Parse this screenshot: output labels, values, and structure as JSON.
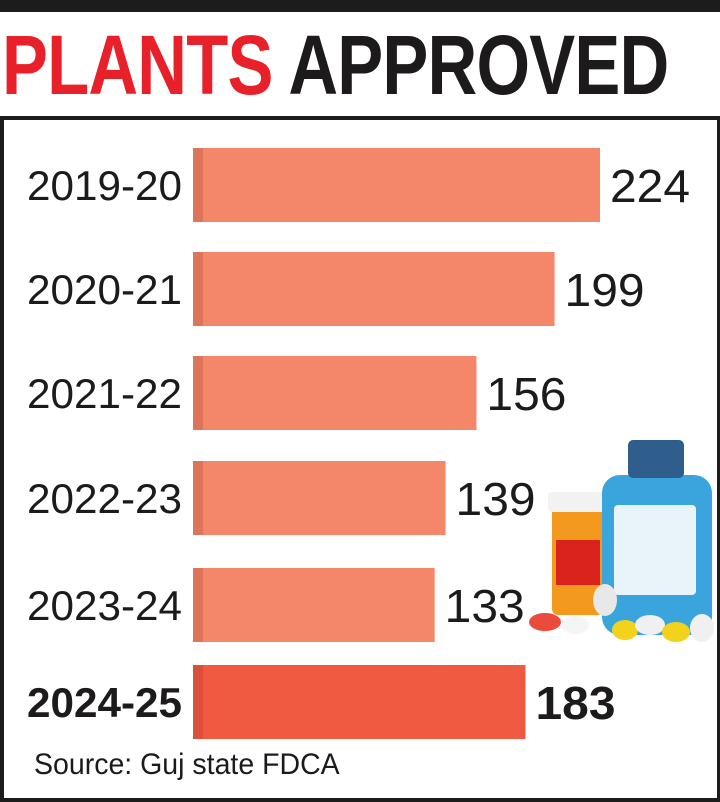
{
  "chart_data": {
    "type": "bar",
    "orientation": "horizontal",
    "title": "PLANTS APPROVED",
    "title_parts": [
      "PLANTS",
      "APPROVED"
    ],
    "categories": [
      "2019-20",
      "2020-21",
      "2021-22",
      "2022-23",
      "2023-24",
      "2024-25"
    ],
    "values": [
      224,
      199,
      156,
      139,
      133,
      183
    ],
    "value_labels": [
      "224",
      "199",
      "156",
      "139",
      "133",
      "183"
    ],
    "highlight_category": "2024-25",
    "xlim": [
      0,
      224
    ],
    "grid": false,
    "source": "Source: Guj state FDCA",
    "colors": {
      "bar": "#f4866a",
      "highlight": "#ef5a40",
      "title_red": "#e8202a",
      "title_black": "#1c1a1b"
    }
  }
}
